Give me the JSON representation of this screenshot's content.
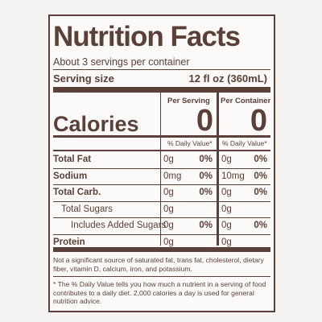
{
  "title": "Nutrition Facts",
  "servings": "About 3 servings per container",
  "serving_size": {
    "label": "Serving size",
    "value": "12 fl oz (360mL)"
  },
  "columns": {
    "per_serving": "Per Serving",
    "per_container": "Per Container"
  },
  "calories": {
    "label": "Calories",
    "per_serving": "0",
    "per_container": "0"
  },
  "daily_value_header": {
    "per_serving": "% Daily Value*",
    "per_container": "% Daily Value*"
  },
  "rows": [
    {
      "label": "Total Fat",
      "per_serving_amount": "0g",
      "per_serving_dv": "0%",
      "per_container_amount": "0g",
      "per_container_dv": "0%"
    },
    {
      "label": "Sodium",
      "per_serving_amount": "0mg",
      "per_serving_dv": "0%",
      "per_container_amount": "10mg",
      "per_container_dv": "0%"
    },
    {
      "label": "Total Carb.",
      "per_serving_amount": "0g",
      "per_serving_dv": "0%",
      "per_container_amount": "0g",
      "per_container_dv": "0%"
    },
    {
      "label": "Total Sugars",
      "per_serving_amount": "0g",
      "per_container_amount": "0g"
    },
    {
      "label": "Includes Added Sugars",
      "per_serving_amount": "0g",
      "per_serving_dv": "0%",
      "per_container_amount": "0g",
      "per_container_dv": "0%"
    },
    {
      "label": "Protein",
      "per_serving_amount": "0g",
      "per_container_amount": "0g"
    }
  ],
  "footnotes": [
    "Not a significant source of saturated fat, trans fat, cholesterol, dietary fiber, vitamin D, calcium, iron, and potassium.",
    "* The % Daily Value tells you how much a nutrient in a serving of food contributes to a daily diet. 2,000 calories a day is used for general nutrition advice."
  ]
}
